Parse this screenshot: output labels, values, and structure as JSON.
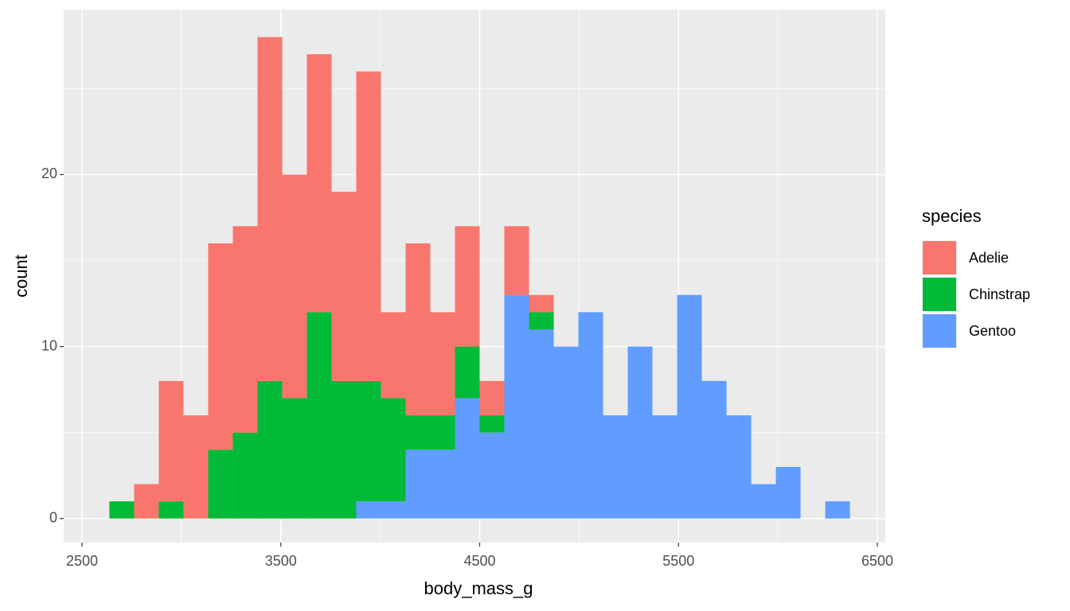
{
  "chart_data": {
    "type": "histogram",
    "x_label": "body_mass_g",
    "y_label": "count",
    "legend_title": "species",
    "bins": [
      2637.9,
      2762.1,
      2886.2,
      3010.3,
      3134.5,
      3258.6,
      3382.8,
      3506.9,
      3631.0,
      3755.2,
      3879.3,
      4003.4,
      4127.6,
      4251.7,
      4375.9,
      4500.0,
      4624.1,
      4748.3,
      4872.4,
      4996.6,
      5120.7,
      5244.8,
      5369.0,
      5493.1,
      5617.2,
      5741.4,
      5865.5,
      5989.7,
      6113.8,
      6237.9,
      6362.1
    ],
    "stacked": true,
    "series": [
      {
        "name": "Adelie",
        "color": "#F8766D",
        "values": [
          0,
          2,
          7,
          6,
          12,
          12,
          20,
          13,
          15,
          11,
          18,
          5,
          10,
          6,
          7,
          2,
          4,
          1,
          0,
          0,
          0,
          0,
          0,
          0,
          0,
          0,
          0,
          0,
          0,
          0
        ]
      },
      {
        "name": "Chinstrap",
        "color": "#00BA38",
        "values": [
          1,
          0,
          1,
          0,
          4,
          5,
          8,
          7,
          12,
          8,
          7,
          6,
          2,
          2,
          3,
          1,
          0,
          1,
          0,
          0,
          0,
          0,
          0,
          0,
          0,
          0,
          0,
          0,
          0,
          0
        ]
      },
      {
        "name": "Gentoo",
        "color": "#619CFF",
        "values": [
          0,
          0,
          0,
          0,
          0,
          0,
          0,
          0,
          0,
          0,
          1,
          1,
          4,
          4,
          7,
          5,
          13,
          11,
          10,
          12,
          6,
          10,
          6,
          13,
          8,
          6,
          2,
          3,
          0,
          1
        ]
      }
    ],
    "xlim": [
      2408,
      6540
    ],
    "ylim": [
      -1.4,
      29.6
    ],
    "xticks": [
      2500,
      3500,
      4500,
      5500,
      6500
    ],
    "yticks": [
      0,
      10,
      20
    ],
    "x_minor_ticks": [
      3000,
      4000,
      5000,
      6000
    ],
    "y_minor_ticks": [
      5,
      15,
      25
    ],
    "grid": true,
    "panel_color": "#EBEBEB",
    "legend_position": "right"
  }
}
